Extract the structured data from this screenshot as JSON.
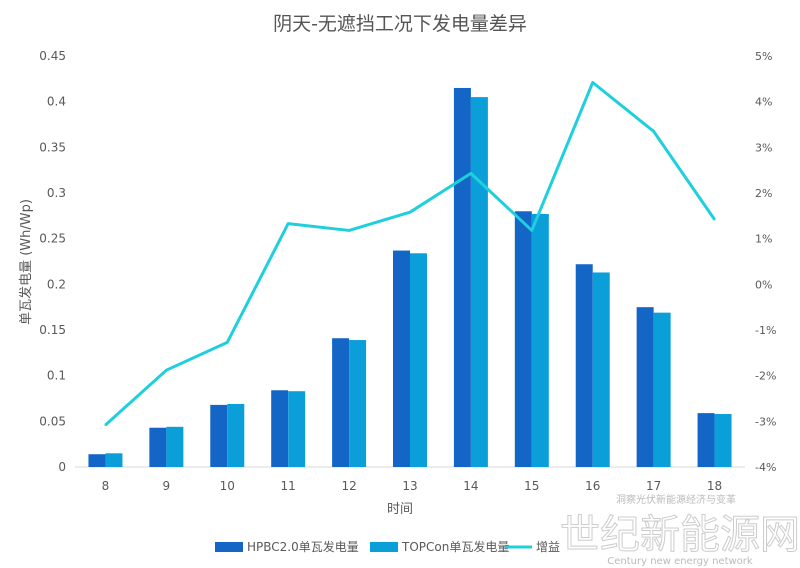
{
  "chart_data": {
    "type": "bar",
    "title": "阴天-无遮挡工况下发电量差异",
    "xlabel": "时间",
    "ylabel": "单瓦发电量 (Wh/Wp)",
    "ylim": [
      0,
      0.45
    ],
    "y_ticks": [
      "0",
      "0.05",
      "0.1",
      "0.15",
      "0.2",
      "0.25",
      "0.3",
      "0.35",
      "0.4",
      "0.45"
    ],
    "y2lim": [
      -4,
      5
    ],
    "y2_ticks": [
      "-4%",
      "-3%",
      "-2%",
      "-1%",
      "0%",
      "1%",
      "2%",
      "3%",
      "4%",
      "5%"
    ],
    "categories": [
      "8",
      "9",
      "10",
      "11",
      "12",
      "13",
      "14",
      "15",
      "16",
      "17",
      "18"
    ],
    "series": [
      {
        "name": "HPBC2.0单瓦发电量",
        "type": "bar",
        "color": "#1466c6",
        "values": [
          0.014,
          0.043,
          0.068,
          0.084,
          0.141,
          0.237,
          0.415,
          0.28,
          0.222,
          0.175,
          0.059
        ]
      },
      {
        "name": "TOPCon单瓦发电量",
        "type": "bar",
        "color": "#0b9fda",
        "values": [
          0.015,
          0.044,
          0.069,
          0.083,
          0.139,
          0.234,
          0.405,
          0.277,
          0.213,
          0.169,
          0.058
        ]
      },
      {
        "name": "增益",
        "type": "line",
        "axis": "right",
        "unit": "%",
        "color": "#1fcfdd",
        "values": [
          -3.08,
          -1.88,
          -1.27,
          1.33,
          1.18,
          1.58,
          2.43,
          1.18,
          4.42,
          3.35,
          1.42
        ]
      }
    ],
    "grid": false,
    "legend": "bottom"
  },
  "watermark": {
    "main": "世纪新能源网",
    "sub": "Century new energy network",
    "top": "洞察光伏新能源经济与变革"
  }
}
